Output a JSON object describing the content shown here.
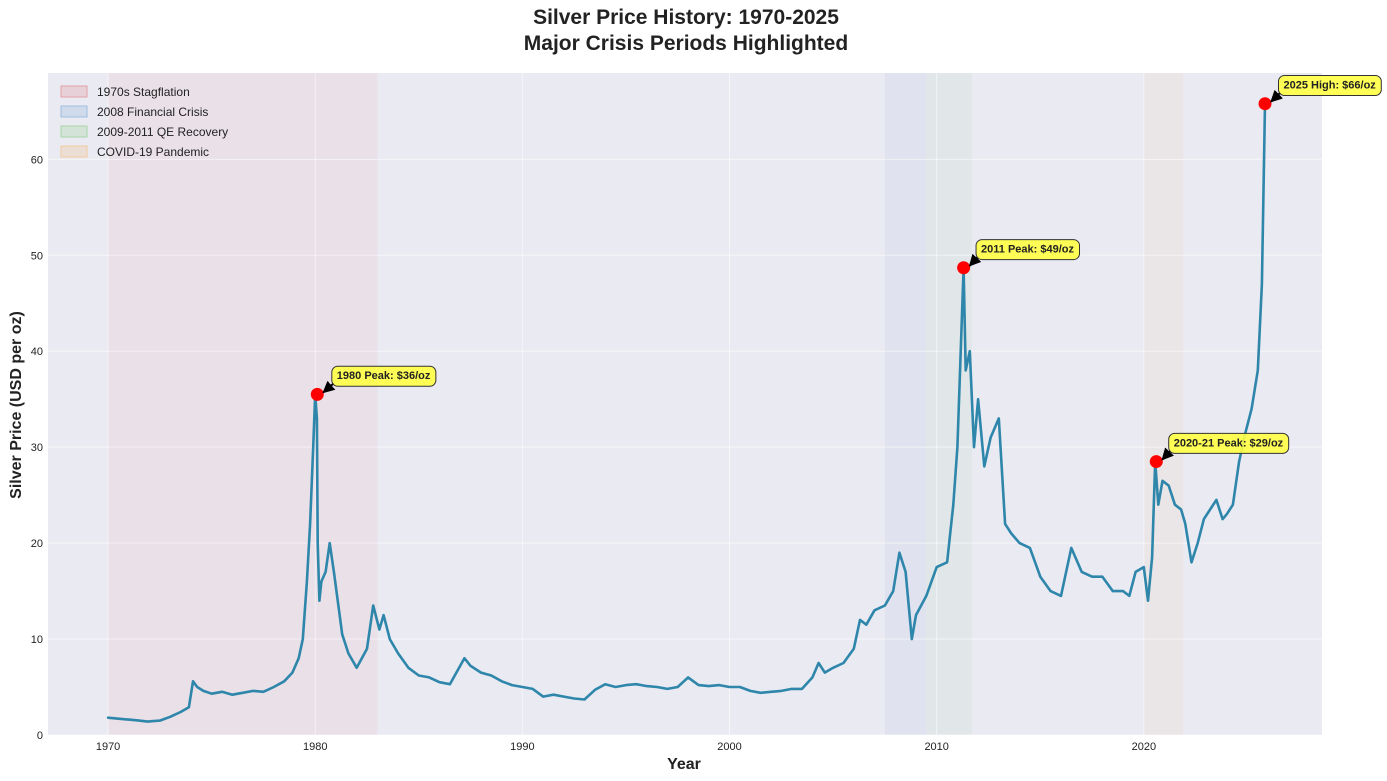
{
  "chart_data": {
    "type": "line",
    "title": "Silver Price History: 1970-2025",
    "subtitle": "Major Crisis Periods Highlighted",
    "xlabel": "Year",
    "ylabel": "Silver Price (USD per oz)",
    "xlim": [
      1967.1,
      2028.6
    ],
    "ylim": [
      0,
      69
    ],
    "x_ticks": [
      1970,
      1980,
      1990,
      2000,
      2010,
      2020
    ],
    "y_ticks": [
      0,
      10,
      20,
      30,
      40,
      50,
      60
    ],
    "grid": true,
    "legend_position": "top-left",
    "colors": {
      "line": "#2e86ab",
      "plot_bg": "#eaeaf2",
      "peak_marker": "#ff0000",
      "annotation_bg": "#ffff44"
    },
    "series": [
      {
        "x": [
          1970.0,
          1970.5,
          1971.0,
          1971.5,
          1971.9,
          1972.5,
          1973.0,
          1973.5,
          1973.9,
          1974.1,
          1974.3,
          1974.6,
          1975.0,
          1975.5,
          1976.0,
          1976.5,
          1977.0,
          1977.5,
          1978.0,
          1978.5,
          1978.9,
          1979.2,
          1979.4,
          1979.6,
          1979.75,
          1979.9,
          1980.0,
          1980.08,
          1980.12,
          1980.2,
          1980.3,
          1980.5,
          1980.7,
          1980.9,
          1981.3,
          1981.6,
          1982.0,
          1982.5,
          1982.8,
          1983.1,
          1983.3,
          1983.6,
          1984.0,
          1984.5,
          1985.0,
          1985.5,
          1986.0,
          1986.5,
          1987.2,
          1987.5,
          1988.0,
          1988.5,
          1989.0,
          1989.5,
          1990.0,
          1990.5,
          1991.0,
          1991.5,
          1992.0,
          1992.5,
          1993.0,
          1993.5,
          1994.0,
          1994.5,
          1995.0,
          1995.5,
          1996.0,
          1996.5,
          1997.0,
          1997.5,
          1998.0,
          1998.5,
          1999.0,
          1999.5,
          2000.0,
          2000.5,
          2001.0,
          2001.5,
          2002.0,
          2002.5,
          2003.0,
          2003.5,
          2004.0,
          2004.3,
          2004.6,
          2005.0,
          2005.5,
          2006.0,
          2006.3,
          2006.6,
          2007.0,
          2007.5,
          2007.9,
          2008.2,
          2008.5,
          2008.8,
          2009.0,
          2009.5,
          2010.0,
          2010.5,
          2010.8,
          2011.0,
          2011.3,
          2011.4,
          2011.6,
          2011.8,
          2012.0,
          2012.3,
          2012.6,
          2013.0,
          2013.3,
          2013.6,
          2014.0,
          2014.5,
          2015.0,
          2015.5,
          2016.0,
          2016.5,
          2017.0,
          2017.5,
          2018.0,
          2018.5,
          2019.0,
          2019.3,
          2019.6,
          2020.0,
          2020.2,
          2020.4,
          2020.55,
          2020.7,
          2020.9,
          2021.2,
          2021.5,
          2021.8,
          2022.0,
          2022.3,
          2022.6,
          2022.9,
          2023.2,
          2023.5,
          2023.8,
          2024.0,
          2024.3,
          2024.6,
          2024.9,
          2025.2,
          2025.5,
          2025.7,
          2025.85
        ],
        "values": [
          1.8,
          1.7,
          1.6,
          1.5,
          1.4,
          1.5,
          1.9,
          2.4,
          2.9,
          5.6,
          5.0,
          4.6,
          4.3,
          4.5,
          4.2,
          4.4,
          4.6,
          4.5,
          5.0,
          5.6,
          6.5,
          8.0,
          10.0,
          16.0,
          22.0,
          30.0,
          35.5,
          33.0,
          20.0,
          14.0,
          16.0,
          17.0,
          20.0,
          17.0,
          10.5,
          8.5,
          7.0,
          9.0,
          13.5,
          11.0,
          12.5,
          10.0,
          8.5,
          7.0,
          6.2,
          6.0,
          5.5,
          5.3,
          8.0,
          7.2,
          6.5,
          6.2,
          5.6,
          5.2,
          5.0,
          4.8,
          4.0,
          4.2,
          4.0,
          3.8,
          3.7,
          4.7,
          5.3,
          5.0,
          5.2,
          5.3,
          5.1,
          5.0,
          4.8,
          5.0,
          6.0,
          5.2,
          5.1,
          5.2,
          5.0,
          5.0,
          4.6,
          4.4,
          4.5,
          4.6,
          4.8,
          4.8,
          6.0,
          7.5,
          6.5,
          7.0,
          7.5,
          9.0,
          12.0,
          11.5,
          13.0,
          13.5,
          15.0,
          19.0,
          17.0,
          10.0,
          12.5,
          14.5,
          17.5,
          18.0,
          24.0,
          30.0,
          48.7,
          38.0,
          40.0,
          30.0,
          35.0,
          28.0,
          31.0,
          33.0,
          22.0,
          21.0,
          20.0,
          19.5,
          16.5,
          15.0,
          14.5,
          19.5,
          17.0,
          16.5,
          16.5,
          15.0,
          15.0,
          14.5,
          17.0,
          17.5,
          14.0,
          18.5,
          28.5,
          24.0,
          26.5,
          26.0,
          24.0,
          23.5,
          22.0,
          18.0,
          20.0,
          22.5,
          23.5,
          24.5,
          22.5,
          23.0,
          24.0,
          28.5,
          31.5,
          34.0,
          38.0,
          47.0,
          65.8
        ]
      }
    ],
    "crisis_periods": [
      {
        "label": "1970s Stagflation",
        "start": 1970.0,
        "end": 1983.0,
        "color": "#e4a0a8"
      },
      {
        "label": "2008 Financial Crisis",
        "start": 2007.5,
        "end": 2009.5,
        "color": "#9fbde0"
      },
      {
        "label": "2009-2011 QE Recovery",
        "start": 2009.5,
        "end": 2011.7,
        "color": "#a9d6a9"
      },
      {
        "label": "COVID-19 Pandemic",
        "start": 2020.0,
        "end": 2021.9,
        "color": "#f3c9a0"
      }
    ],
    "annotations": [
      {
        "label": "1980 Peak: $36/oz",
        "x": 1980.1,
        "y": 35.5,
        "text_x": 1980.8,
        "text_y": 37.5
      },
      {
        "label": "2011 Peak: $49/oz",
        "x": 2011.3,
        "y": 48.7,
        "text_x": 2011.9,
        "text_y": 50.7
      },
      {
        "label": "2020-21 Peak: $29/oz",
        "x": 2020.6,
        "y": 28.5,
        "text_x": 2021.2,
        "text_y": 30.5
      },
      {
        "label": "2025 High: $66/oz",
        "x": 2025.85,
        "y": 65.8,
        "text_x": 2026.5,
        "text_y": 67.8
      }
    ]
  }
}
